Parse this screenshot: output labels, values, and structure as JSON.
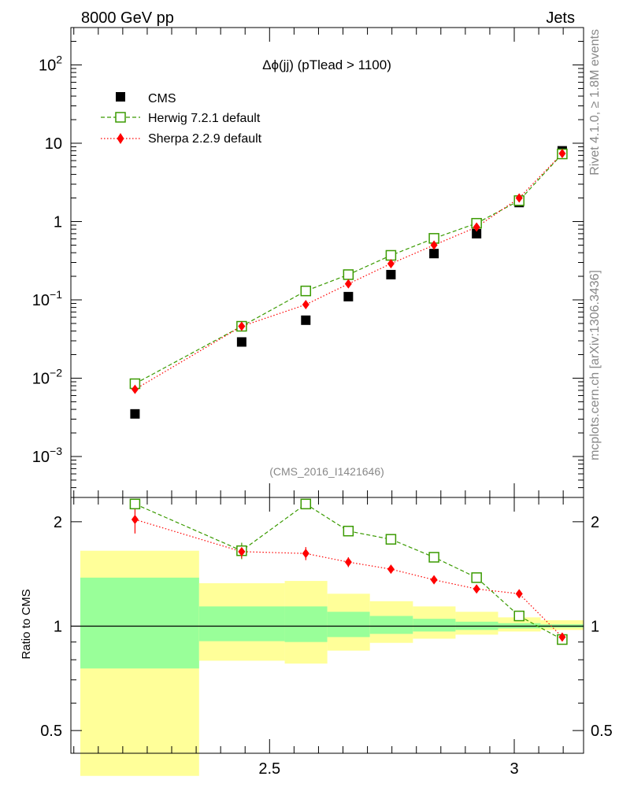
{
  "header": {
    "left_label": "8000 GeV pp",
    "right_label": "Jets",
    "side_label_top": "Rivet 4.1.0, ≥ 1.8M events",
    "side_label_bottom": "mcplots.cern.ch [arXiv:1306.3436]",
    "analysis_id": "(CMS_2016_I1421646)"
  },
  "colors": {
    "cms": "#000000",
    "herwig": "#3a9a00",
    "sherpa": "#ff0000",
    "band_inner": "#99ff99",
    "band_outer": "#ffff99"
  },
  "chart_data": [
    {
      "type": "scatter",
      "title": "Δϕ(jj) (pTlead >  1100)",
      "xlabel": "",
      "ylabel": "",
      "yscale": "log",
      "xlim": [
        2.094,
        3.1416
      ],
      "ylim": [
        0.0003,
        300
      ],
      "ytick_labels": [
        {
          "value": 0.001,
          "base": "10",
          "exp": "−3"
        },
        {
          "value": 0.01,
          "base": "10",
          "exp": "−2"
        },
        {
          "value": 0.1,
          "base": "10",
          "exp": "−1"
        },
        {
          "value": 1,
          "base": "1",
          "exp": ""
        },
        {
          "value": 10,
          "base": "10",
          "exp": ""
        },
        {
          "value": 100,
          "base": "10",
          "exp": "2"
        }
      ],
      "legend_position": "top-left",
      "series": [
        {
          "name": "CMS",
          "style": "marker",
          "x": [
            2.225,
            2.443,
            2.574,
            2.661,
            2.748,
            2.836,
            2.923,
            3.01,
            3.098
          ],
          "y": [
            0.0035,
            0.029,
            0.055,
            0.11,
            0.21,
            0.39,
            0.7,
            1.75,
            8.0
          ]
        },
        {
          "name": "Herwig 7.2.1 default",
          "style": "open-square-dashed",
          "x": [
            2.225,
            2.443,
            2.574,
            2.661,
            2.748,
            2.836,
            2.923,
            3.01,
            3.098
          ],
          "y": [
            0.0085,
            0.046,
            0.13,
            0.21,
            0.37,
            0.61,
            0.95,
            1.85,
            7.3
          ]
        },
        {
          "name": "Sherpa 2.2.9 default",
          "style": "diamond-dotted",
          "x": [
            2.225,
            2.443,
            2.574,
            2.661,
            2.748,
            2.836,
            2.923,
            3.01,
            3.098
          ],
          "y": [
            0.0072,
            0.046,
            0.087,
            0.16,
            0.29,
            0.5,
            0.85,
            2.0,
            7.4
          ]
        }
      ]
    },
    {
      "type": "scatter",
      "title": "",
      "xlabel": "",
      "ylabel": "Ratio to CMS",
      "yscale": "log",
      "xlim": [
        2.094,
        3.1416
      ],
      "ylim": [
        0.43,
        2.35
      ],
      "xticks": [
        2.5,
        3.0
      ],
      "xtick_labels": [
        "2.5",
        "3"
      ],
      "ytick_labels": [
        {
          "value": 0.5,
          "label": "0.5"
        },
        {
          "value": 1,
          "label": "1"
        },
        {
          "value": 2,
          "label": "2"
        }
      ],
      "reference_line": 1,
      "bands": {
        "bins": [
          {
            "x_low": 2.094,
            "x_high": 2.356,
            "inner": [
              0.755,
              1.38
            ],
            "outer": [
              0.37,
              1.65
            ]
          },
          {
            "x_low": 2.356,
            "x_high": 2.531,
            "inner": [
              0.905,
              1.14
            ],
            "outer": [
              0.795,
              1.33
            ]
          },
          {
            "x_low": 2.531,
            "x_high": 2.618,
            "inner": [
              0.9,
              1.14
            ],
            "outer": [
              0.78,
              1.35
            ]
          },
          {
            "x_low": 2.618,
            "x_high": 2.705,
            "inner": [
              0.93,
              1.1
            ],
            "outer": [
              0.85,
              1.24
            ]
          },
          {
            "x_low": 2.705,
            "x_high": 2.793,
            "inner": [
              0.95,
              1.07
            ],
            "outer": [
              0.895,
              1.18
            ]
          },
          {
            "x_low": 2.793,
            "x_high": 2.88,
            "inner": [
              0.965,
              1.05
            ],
            "outer": [
              0.92,
              1.14
            ]
          },
          {
            "x_low": 2.88,
            "x_high": 2.967,
            "inner": [
              0.975,
              1.03
            ],
            "outer": [
              0.945,
              1.1
            ]
          },
          {
            "x_low": 2.967,
            "x_high": 3.054,
            "inner": [
              0.985,
              1.02
            ],
            "outer": [
              0.965,
              1.06
            ]
          },
          {
            "x_low": 3.054,
            "x_high": 3.1416,
            "inner": [
              0.99,
              1.012
            ],
            "outer": [
              0.975,
              1.04
            ]
          }
        ]
      },
      "series": [
        {
          "name": "Herwig 7.2.1 default",
          "x": [
            2.225,
            2.443,
            2.574,
            2.661,
            2.748,
            2.836,
            2.923,
            3.01,
            3.098
          ],
          "y": [
            2.25,
            1.65,
            2.25,
            1.88,
            1.78,
            1.58,
            1.38,
            1.07,
            0.915
          ],
          "err": [
            0.0,
            0.09,
            0.05,
            0.05,
            0.04,
            0.03,
            0.02,
            0.01,
            0.01
          ]
        },
        {
          "name": "Sherpa 2.2.9 default",
          "x": [
            2.225,
            2.443,
            2.574,
            2.661,
            2.748,
            2.836,
            2.923,
            3.01,
            3.098
          ],
          "y": [
            2.03,
            1.64,
            1.62,
            1.53,
            1.46,
            1.36,
            1.28,
            1.24,
            0.93
          ],
          "err": [
            0.18,
            0.07,
            0.07,
            0.05,
            0.04,
            0.03,
            0.02,
            0.02,
            0.01
          ]
        }
      ]
    }
  ]
}
